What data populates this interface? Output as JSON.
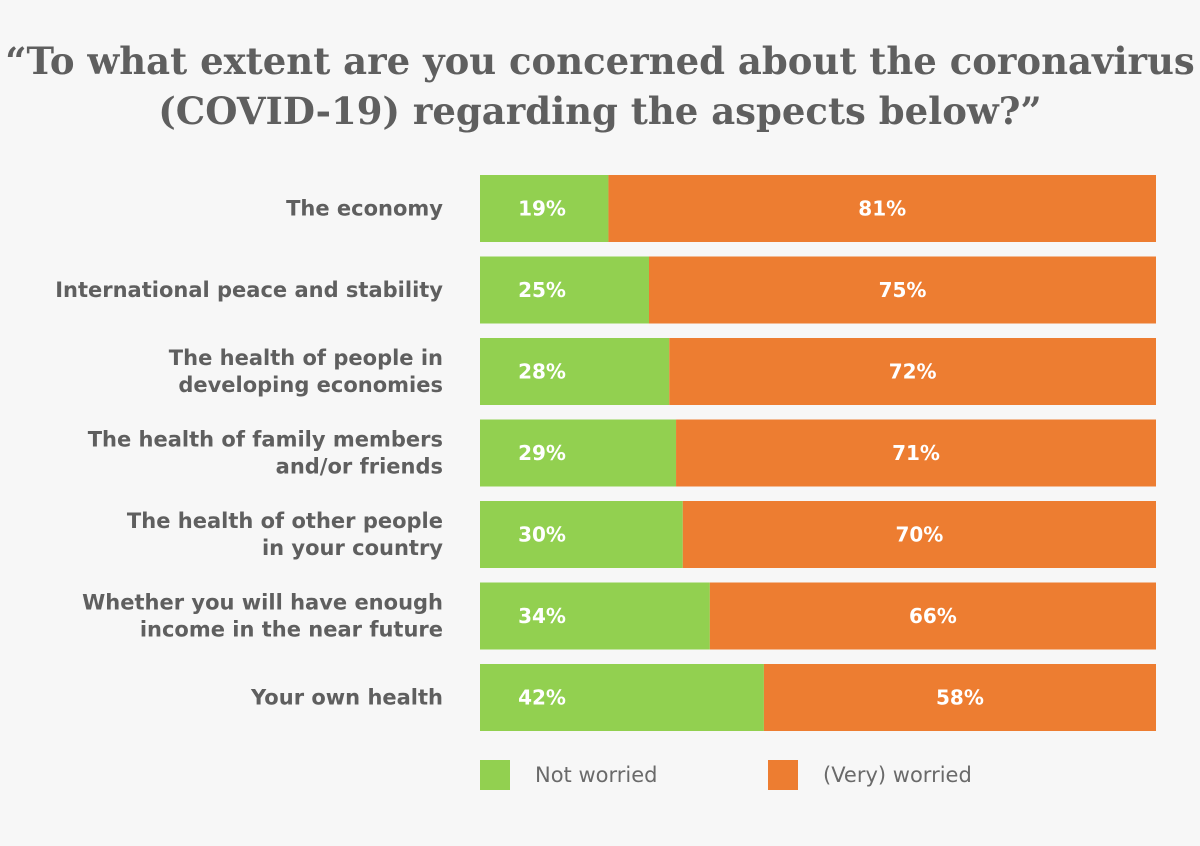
{
  "title_lines": [
    "“To what extent are you concerned about the coronavirus",
    "(COVID-19) regarding the aspects below?”"
  ],
  "colors": {
    "not_worried": "#92d050",
    "worried": "#ed7d31",
    "text": "#5f5f5f",
    "background": "#f7f7f7"
  },
  "chart_data": {
    "type": "bar",
    "orientation": "horizontal",
    "stacked": true,
    "normalized_100": true,
    "title": "“To what extent are you concerned about the coronavirus (COVID-19) regarding the aspects below?”",
    "categories": [
      [
        "The economy"
      ],
      [
        "International peace and stability"
      ],
      [
        "The health of people in",
        "developing economies"
      ],
      [
        "The health of family members",
        "and/or friends"
      ],
      [
        "The health of other people",
        "in your country"
      ],
      [
        "Whether you will have enough",
        "income in the near future"
      ],
      [
        "Your own health"
      ]
    ],
    "series": [
      {
        "name": "Not worried",
        "color": "#92d050",
        "values": [
          19,
          25,
          28,
          29,
          30,
          34,
          42
        ]
      },
      {
        "name": "(Very) worried",
        "color": "#ed7d31",
        "values": [
          81,
          75,
          72,
          71,
          70,
          66,
          58
        ]
      }
    ],
    "value_suffix": "%",
    "xlim": [
      0,
      100
    ],
    "grid": false,
    "legend_position": "bottom"
  }
}
